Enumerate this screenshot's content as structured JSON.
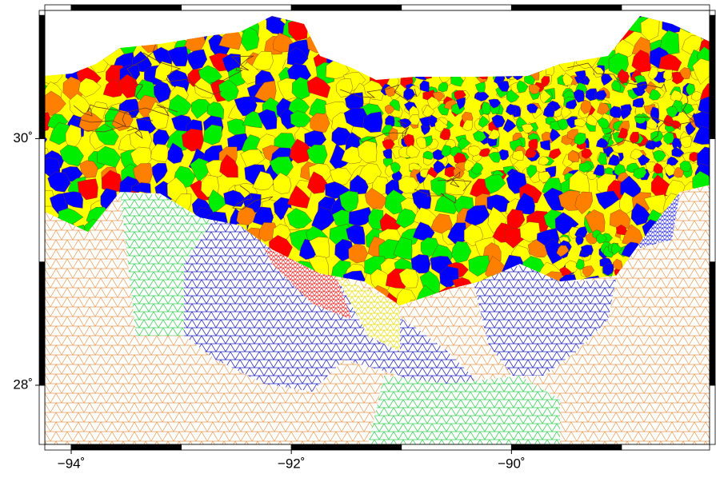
{
  "map": {
    "xlim": [
      -94.24,
      -88.2
    ],
    "ylim": [
      27.52,
      31.04
    ],
    "x_ticks": [
      {
        "value": -94,
        "label": "−94˚"
      },
      {
        "value": -92,
        "label": "−92˚"
      },
      {
        "value": -90,
        "label": "−90˚"
      }
    ],
    "y_ticks": [
      {
        "value": 30,
        "label": "30˚"
      },
      {
        "value": 28,
        "label": "28˚"
      }
    ]
  }
}
